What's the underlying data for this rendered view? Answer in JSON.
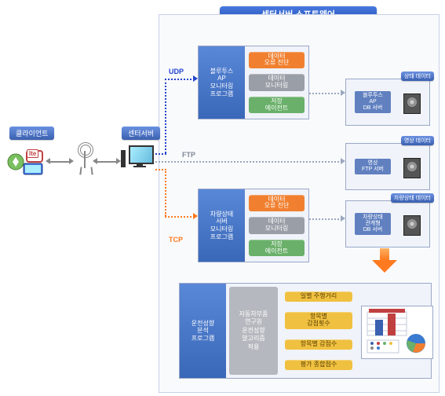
{
  "title": "센터서버 소프트웨어",
  "client_label": "클라이언트",
  "lte_badge": "lte",
  "center_server_label": "센터서버",
  "protocols": {
    "udp": "UDP",
    "ftp": "FTP",
    "tcp": "TCP"
  },
  "colors": {
    "bg": "#ffffff",
    "frame_border": "#c8d0e8",
    "frame_bg": "#f9fafc",
    "title_grad_top": "#4a7ae0",
    "title_grad_bot": "#1a4ab0",
    "blue_chip_top": "#6a90e0",
    "blue_chip_bot": "#3a60b0",
    "mod_border": "#9aa8c8",
    "mod_bg": "#f0f3f9",
    "left_lbl_top": "#5a88d8",
    "left_lbl_bot": "#3a68b8",
    "pill_orange": "#f08030",
    "pill_gray": "#9a9ea6",
    "pill_green": "#6ab06a",
    "pill_yellow": "#f0c040",
    "dash_blue": "#2244cc",
    "dash_gray": "#9aa8bf",
    "dash_orange": "#ff7a20",
    "proto_udp_color": "#2244cc",
    "proto_ftp_color": "#808895",
    "proto_tcp_color": "#ff7a20"
  },
  "module_udp": {
    "label": "블루투스\\nAP\\n모니터링\\n프로그램",
    "pills": [
      {
        "text": "데이터\\n오류 진단",
        "color": "#f08030"
      },
      {
        "text": "데이터\\n모니터링",
        "color": "#9a9ea6"
      },
      {
        "text": "저장\\n에이전트",
        "color": "#6ab06a"
      }
    ]
  },
  "module_tcp": {
    "label": "차량상태\\n서버\\n모니터링\\n프로그램",
    "pills": [
      {
        "text": "데이터\\n오류 진단",
        "color": "#f08030"
      },
      {
        "text": "데이터\\n모니터링",
        "color": "#9a9ea6"
      },
      {
        "text": "저장\\n에이전트",
        "color": "#6ab06a"
      }
    ]
  },
  "module_analysis": {
    "label": "운전성향\\n분석\\n프로그램",
    "mid_text": "자동차부품\\n연구원\\n운전성향\\n알고리즘\\n적용",
    "pills": [
      {
        "text": "일별 주행거리",
        "color": "#f0c040"
      },
      {
        "text": "항목별\\n감점횟수",
        "color": "#f0c040"
      },
      {
        "text": "항목별 감점수",
        "color": "#f0c040"
      },
      {
        "text": "평가 종합점수",
        "color": "#f0c040"
      }
    ]
  },
  "servers": {
    "bt_db": {
      "text": "블루투스\\nAP\\nDB 서버",
      "cap": "상태 데이터"
    },
    "ftp": {
      "text": "영상\\nFTP 서버",
      "cap": "영상 데이터"
    },
    "veh_db": {
      "text": "차량상태\\n관계형\\nDB 서버",
      "cap": "차량상태 데이터"
    }
  },
  "analysis_chart": {
    "type": "bar+pie",
    "bar_title_color": "#c04040",
    "bars": [
      {
        "h": 20,
        "color": "#3a60b0"
      },
      {
        "h": 28,
        "color": "#c04040"
      }
    ],
    "axis_color": "#c0c8d8",
    "pie_colors": [
      "#3a7ad0",
      "#f08030",
      "#6ab06a"
    ],
    "pie_slices": [
      55,
      25,
      20
    ]
  }
}
